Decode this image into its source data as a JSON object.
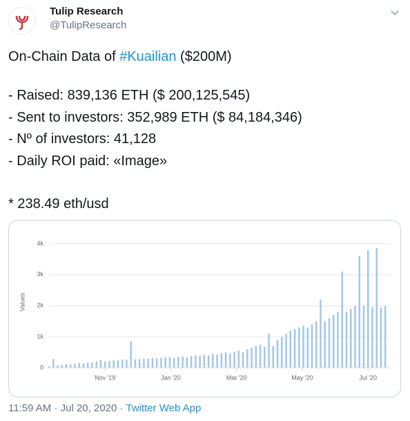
{
  "tweet": {
    "name": "Tulip Research",
    "handle": "@TulipResearch",
    "text": {
      "intro": "On-Chain Data of ",
      "hashtag": "#Kuailian",
      "intro_end": " ($200M)",
      "lines": [
        "- Raised: 839,136 ETH ($ 200,125,545)",
        "- Sent to investors: 352,989 ETH ($ 84,184,346)",
        "- Nº of investors: 41,128",
        "- Daily ROI paid: «Image»"
      ],
      "note": "* 238.49 eth/usd"
    },
    "time": "11:59 AM",
    "separator": "·",
    "date": "Jul 20, 2020",
    "source": "Twitter Web App"
  },
  "chart_data": {
    "type": "bar",
    "y_label": "Values",
    "color": "#9cc6ee",
    "grid": true,
    "x": [
      0,
      4,
      8,
      12,
      16,
      20,
      24,
      28,
      32,
      36,
      40,
      44,
      48,
      52,
      56,
      60,
      64,
      68,
      72,
      76,
      80,
      84,
      88,
      92,
      96,
      100,
      104,
      108,
      112,
      116,
      120,
      124,
      128,
      132,
      136,
      140,
      144,
      148,
      152,
      156,
      160,
      164,
      168,
      172,
      176,
      180,
      184,
      188,
      192,
      196,
      200,
      204,
      208,
      212,
      216,
      220,
      224,
      228,
      232,
      236,
      240,
      244,
      248,
      252,
      256,
      260,
      264,
      268,
      272,
      276,
      280,
      284,
      288,
      292,
      296,
      300,
      304,
      308,
      312
    ],
    "values": [
      50,
      280,
      80,
      100,
      120,
      110,
      130,
      150,
      140,
      160,
      180,
      200,
      250,
      200,
      220,
      250,
      240,
      260,
      260,
      850,
      270,
      280,
      300,
      290,
      310,
      300,
      320,
      330,
      340,
      320,
      350,
      360,
      340,
      380,
      400,
      380,
      420,
      400,
      450,
      430,
      480,
      500,
      460,
      520,
      550,
      500,
      600,
      650,
      700,
      750,
      680,
      1100,
      700,
      900,
      1000,
      1100,
      1200,
      1250,
      1300,
      1350,
      1300,
      1400,
      1500,
      2200,
      1500,
      1600,
      1700,
      1800,
      3100,
      1800,
      1900,
      2000,
      3600,
      2000,
      3800,
      1950,
      3850,
      1950,
      2000
    ],
    "xlim": [
      0,
      317
    ],
    "xticks": [
      {
        "value": 52,
        "label": "Nov '19"
      },
      {
        "value": 113,
        "label": "Jan '20"
      },
      {
        "value": 174,
        "label": "Mar '20"
      },
      {
        "value": 235,
        "label": "May '20"
      },
      {
        "value": 296,
        "label": "Jul '20"
      }
    ],
    "ylim": [
      0,
      4300
    ],
    "yticks": [
      0,
      {
        "value": 1000,
        "label": "1k"
      },
      {
        "value": 2000,
        "label": "2k"
      },
      {
        "value": 3000,
        "label": "3k"
      },
      {
        "value": 4000,
        "label": "4k"
      }
    ]
  }
}
